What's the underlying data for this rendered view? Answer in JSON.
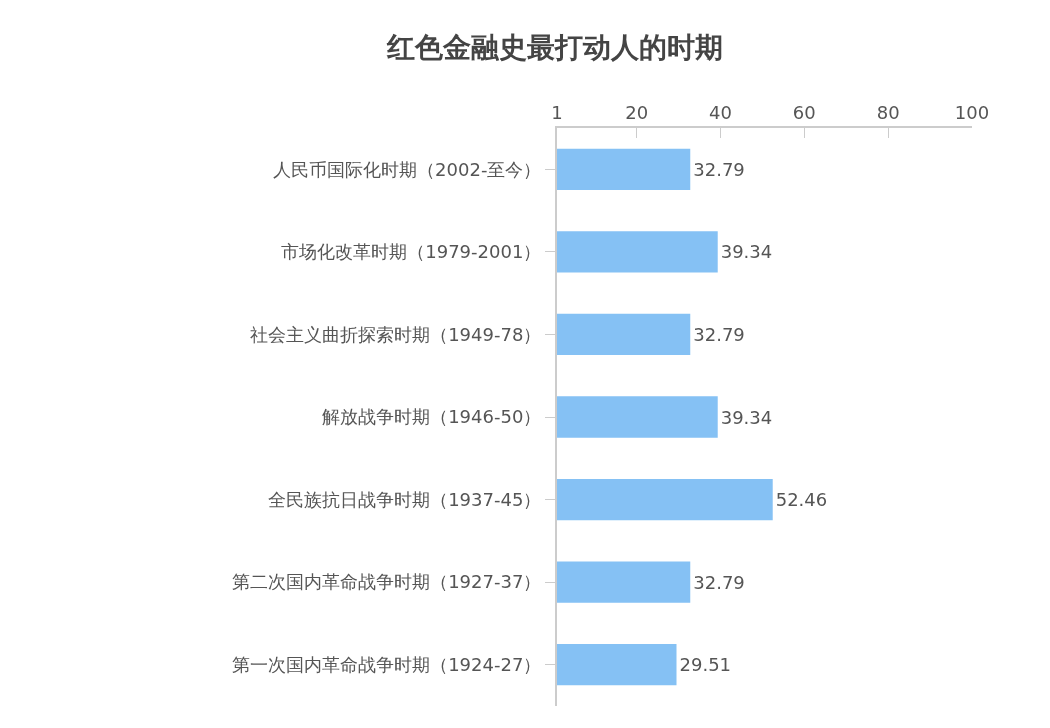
{
  "chart_data": {
    "type": "bar",
    "orientation": "horizontal",
    "title": "红色金融史最打动人的时期",
    "categories": [
      "人民币国际化时期（2002-至今）",
      "市场化改革时期（1979-2001）",
      "社会主义曲折探索时期（1949-78）",
      "解放战争时期（1946-50）",
      "全民族抗日战争时期（1937-45）",
      "第二次国内革命战争时期（1927-37）",
      "第一次国内革命战争时期（1924-27）"
    ],
    "values": [
      32.79,
      39.34,
      32.79,
      39.34,
      52.46,
      32.79,
      29.51
    ],
    "color": "#85c1f4",
    "xlim": [
      1,
      100
    ],
    "xticks": [
      1,
      20,
      40,
      60,
      80,
      100
    ],
    "data_labels": true
  }
}
